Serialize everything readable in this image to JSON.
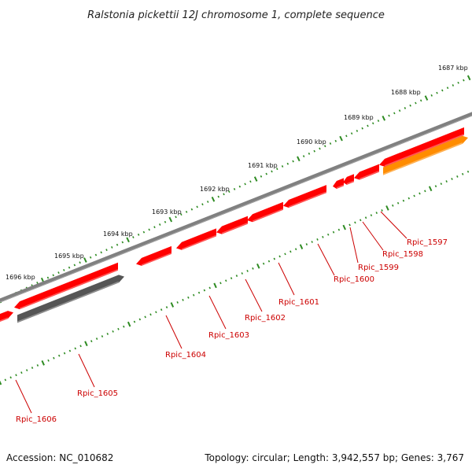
{
  "title": "Ralstonia pickettii 12J chromosome 1, complete sequence",
  "footer": {
    "accession": "Accession: NC_010682",
    "summary": "Topology: circular; Length: 3,942,557 bp; Genes: 3,767"
  },
  "scale_labels": [
    "1687 kbp",
    "1688 kbp",
    "1689 kbp",
    "1690 kbp",
    "1691 kbp",
    "1692 kbp",
    "1693 kbp",
    "1694 kbp",
    "1695 kbp",
    "1696 kbp"
  ],
  "genes": [
    {
      "id": "Rpic_1597",
      "color": "#ff8c00"
    },
    {
      "id": "Rpic_1598",
      "color": "#ff0000"
    },
    {
      "id": "Rpic_1599",
      "color": "#ff0000"
    },
    {
      "id": "Rpic_1600",
      "color": "#ff0000"
    },
    {
      "id": "Rpic_1601",
      "color": "#ff0000"
    },
    {
      "id": "Rpic_1602",
      "color": "#ff0000"
    },
    {
      "id": "Rpic_1603",
      "color": "#ff0000"
    },
    {
      "id": "Rpic_1604",
      "color": "#ff0000"
    },
    {
      "id": "Rpic_1605",
      "color": "#555555"
    },
    {
      "id": "Rpic_1606",
      "color": "#ff0000"
    }
  ],
  "colors": {
    "backbone": "#808080",
    "ticks": "#2e8b22",
    "label": "#cc0000"
  }
}
